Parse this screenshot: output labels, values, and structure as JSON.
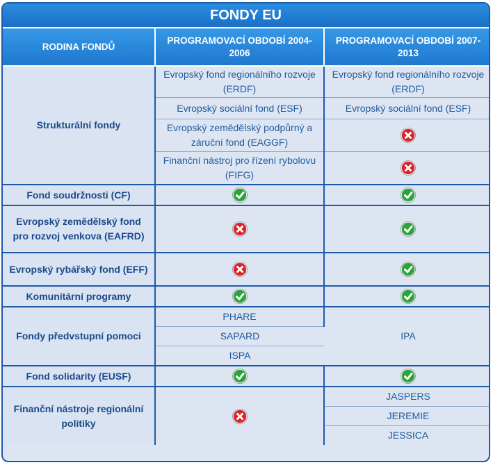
{
  "title": "FONDY EU",
  "headers": [
    "RODINA FONDŮ",
    "PROGRAMOVACÍ OBDOBÍ 2004-2006",
    "PROGRAMOVACÍ OBDOBÍ 2007-2013"
  ],
  "icons": {
    "yes": "check-icon",
    "no": "cross-icon",
    "yes_color": "#2aa43a",
    "no_color": "#d8232a"
  },
  "structural": {
    "family": "Strukturální fondy",
    "rows": [
      {
        "p1": "Evropský fond regionálního rozvoje (ERDF)",
        "p2": "Evropský fond regionálního rozvoje (ERDF)"
      },
      {
        "p1": "Evropský sociální fond (ESF)",
        "p2": "Evropský sociální fond (ESF)"
      },
      {
        "p1": "Evropský zemědělský podpůrný a záruční fond (EAGGF)",
        "p2": "no"
      },
      {
        "p1": "Finanční nástroj pro řízení rybolovu (FIFG)",
        "p2": "no"
      }
    ]
  },
  "cohesion": {
    "family": "Fond soudržnosti (CF)",
    "p1": "yes",
    "p2": "yes"
  },
  "eafrd": {
    "family": "Evropský zemědělský fond pro rozvoj venkova (EAFRD)",
    "p1": "no",
    "p2": "yes"
  },
  "eff": {
    "family": "Evropský rybářský fond (EFF)",
    "p1": "no",
    "p2": "yes"
  },
  "community": {
    "family": "Komunitární programy",
    "p1": "yes",
    "p2": "yes"
  },
  "preaccession": {
    "family": "Fondy předvstupní pomoci",
    "p1": [
      "PHARE",
      "SAPARD",
      "ISPA"
    ],
    "p2": "IPA"
  },
  "solidarity": {
    "family": "Fond solidarity (EUSF)",
    "p1": "yes",
    "p2": "yes"
  },
  "regional": {
    "family": "Finanční nástroje regionální politiky",
    "p1": "no",
    "p2": [
      "JASPERS",
      "JEREMIE",
      "JESSICA"
    ]
  }
}
